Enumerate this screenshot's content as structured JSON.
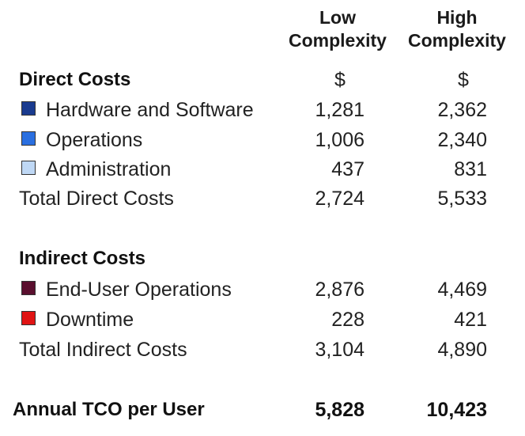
{
  "columns": {
    "low": [
      "Low",
      "Complexity"
    ],
    "high": [
      "High",
      "Complexity"
    ]
  },
  "direct": {
    "heading": "Direct Costs",
    "currency_low": "$",
    "currency_high": "$",
    "items": [
      {
        "label": "Hardware and Software",
        "swatch": "#1a3b8f",
        "low": "1,281",
        "high": "2,362"
      },
      {
        "label": "Operations",
        "swatch": "#2a6fe0",
        "low": "1,006",
        "high": "2,340"
      },
      {
        "label": "Administration",
        "swatch": "#bfd8f5",
        "low": "437",
        "high": "831"
      }
    ],
    "total": {
      "label": "Total Direct Costs",
      "low": "2,724",
      "high": "5,533"
    }
  },
  "indirect": {
    "heading": "Indirect Costs",
    "items": [
      {
        "label": "End-User Operations",
        "swatch": "#5a0f2e",
        "low": "2,876",
        "high": "4,469"
      },
      {
        "label": "Downtime",
        "swatch": "#e01414",
        "low": "228",
        "high": "421"
      }
    ],
    "total": {
      "label": "Total Indirect Costs",
      "low": "3,104",
      "high": "4,890"
    }
  },
  "grand_total": {
    "label": "Annual TCO per User",
    "low": "5,828",
    "high": "10,423"
  }
}
